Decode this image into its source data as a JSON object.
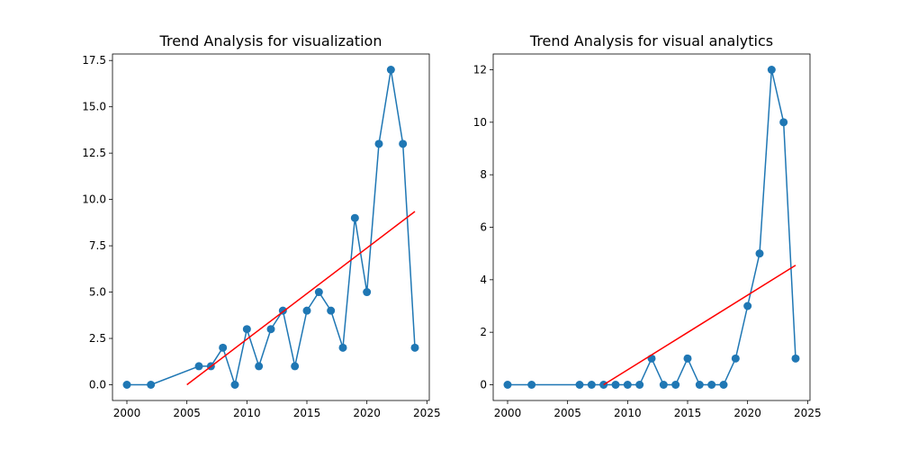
{
  "chart_data": [
    {
      "type": "line",
      "title": "Trend Analysis for visualization",
      "xlabel": "",
      "ylabel": "",
      "xlim": [
        1998.8,
        2025.2
      ],
      "ylim": [
        -0.85,
        17.85
      ],
      "xticks": [
        2000,
        2005,
        2010,
        2015,
        2020,
        2025
      ],
      "xtick_labels": [
        "2000",
        "2005",
        "2010",
        "2015",
        "2020",
        "2025"
      ],
      "yticks": [
        0,
        2.5,
        5,
        7.5,
        10,
        12.5,
        15,
        17.5
      ],
      "ytick_labels": [
        "0.0",
        "2.5",
        "5.0",
        "7.5",
        "10.0",
        "12.5",
        "15.0",
        "17.5"
      ],
      "grid": false,
      "series": [
        {
          "color": "#1f77b4",
          "marker": "circle",
          "x": [
            2000,
            2002,
            2006,
            2007,
            2008,
            2009,
            2010,
            2011,
            2012,
            2013,
            2014,
            2015,
            2016,
            2017,
            2018,
            2019,
            2020,
            2021,
            2022,
            2023,
            2024
          ],
          "y": [
            0,
            0,
            1,
            1,
            2,
            0,
            3,
            1,
            3,
            4,
            1,
            4,
            5,
            4,
            2,
            9,
            5,
            13,
            17,
            13,
            2
          ]
        }
      ],
      "trendline": {
        "color": "#ff0000",
        "x": [
          2005,
          2024
        ],
        "y": [
          0.0,
          9.35
        ]
      }
    },
    {
      "type": "line",
      "title": "Trend Analysis for visual analytics",
      "xlabel": "",
      "ylabel": "",
      "xlim": [
        1998.8,
        2025.2
      ],
      "ylim": [
        -0.6,
        12.6
      ],
      "xticks": [
        2000,
        2005,
        2010,
        2015,
        2020,
        2025
      ],
      "xtick_labels": [
        "2000",
        "2005",
        "2010",
        "2015",
        "2020",
        "2025"
      ],
      "yticks": [
        0,
        2,
        4,
        6,
        8,
        10,
        12
      ],
      "ytick_labels": [
        "0",
        "2",
        "4",
        "6",
        "8",
        "10",
        "12"
      ],
      "grid": false,
      "series": [
        {
          "color": "#1f77b4",
          "marker": "circle",
          "x": [
            2000,
            2002,
            2006,
            2007,
            2008,
            2009,
            2010,
            2011,
            2012,
            2013,
            2014,
            2015,
            2016,
            2017,
            2018,
            2019,
            2020,
            2021,
            2022,
            2023,
            2024
          ],
          "y": [
            0,
            0,
            0,
            0,
            0,
            0,
            0,
            0,
            1,
            0,
            0,
            1,
            0,
            0,
            0,
            1,
            3,
            5,
            12,
            10,
            1
          ]
        }
      ],
      "trendline": {
        "color": "#ff0000",
        "x": [
          2008,
          2024
        ],
        "y": [
          0.0,
          4.55
        ]
      }
    }
  ]
}
